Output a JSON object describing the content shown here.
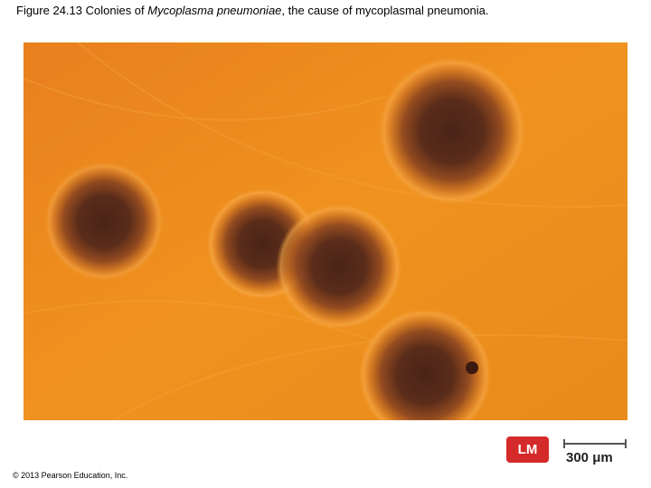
{
  "header": {
    "title": {
      "prefix": "Figure 24.13 Colonies of ",
      "species": "Mycoplasma pneumoniae",
      "suffix": ", the cause of mycoplasmal pneumonia."
    }
  },
  "figure": {
    "method_badge": "LM",
    "scale_bar_label": "300 μm"
  },
  "footer": {
    "copyright": "© 2013 Pearson Education, Inc."
  }
}
